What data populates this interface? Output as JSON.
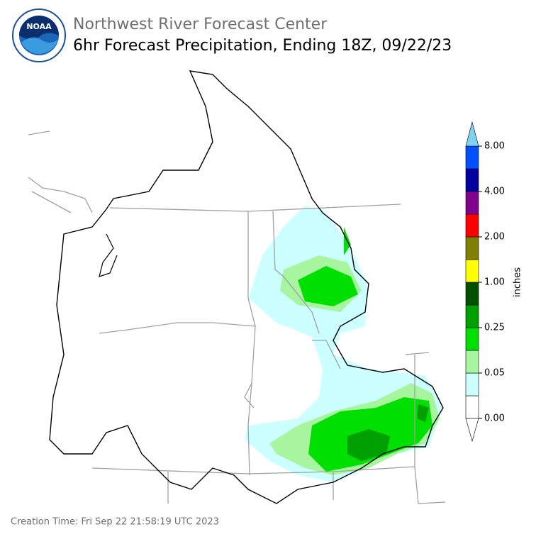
{
  "header": {
    "org": "Northwest River Forecast Center",
    "title": "6hr Forecast Precipitation, Ending 18Z, 09/22/23",
    "logo": "NOAA"
  },
  "colorbar": {
    "label": "inches",
    "tick_labels": [
      "0.00",
      "0.05",
      "0.25",
      "1.00",
      "2.00",
      "4.00",
      "8.00"
    ]
  },
  "footer": {
    "creation_time": "Creation Time: Fri Sep 22 21:58:19 UTC 2023"
  }
}
